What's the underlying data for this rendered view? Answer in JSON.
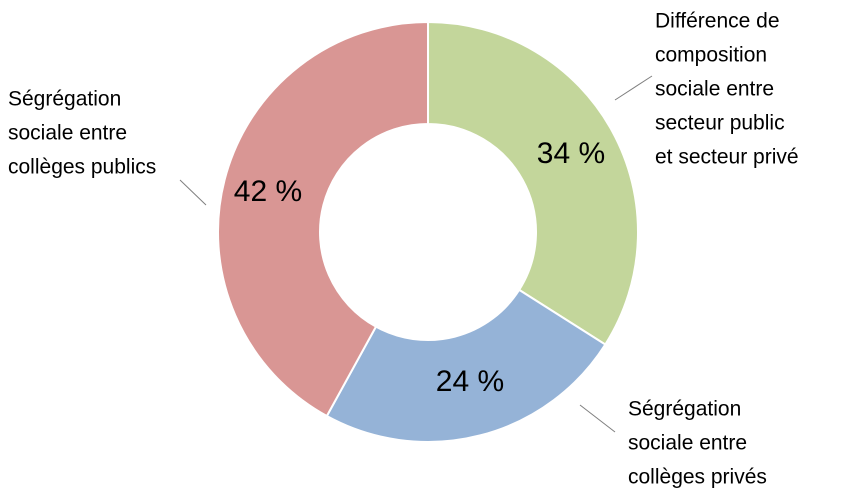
{
  "chart_data": {
    "type": "donut",
    "categories": [
      [
        "Différence de",
        "composition",
        "sociale entre",
        "secteur public",
        "et secteur privé"
      ],
      [
        "Ségrégation",
        "sociale entre",
        "collèges privés"
      ],
      [
        "Ségrégation",
        "sociale entre",
        "collèges publics"
      ]
    ],
    "values": [
      34,
      24,
      42
    ],
    "value_labels": [
      "34 %",
      "24 %",
      "42 %"
    ],
    "colors": [
      "#c3d69b",
      "#95b3d7",
      "#d99694"
    ]
  }
}
